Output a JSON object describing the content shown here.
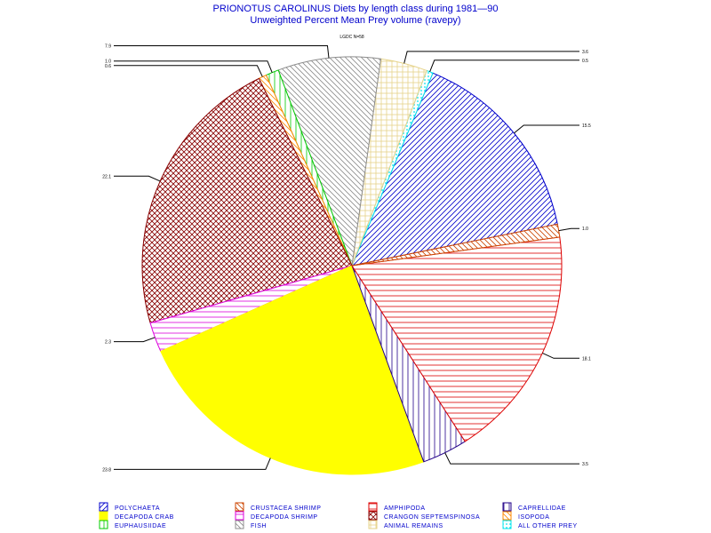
{
  "chart_data": {
    "type": "pie",
    "title": "PRIONOTUS CAROLINUS Diets by length class during 1981—90",
    "subtitle": "Unweighted Percent Mean Prey volume (ravepy)",
    "annotation": "LGDC N=58",
    "slices": [
      {
        "name": "POLYCHAETA",
        "value": 15.5,
        "label": "15.5",
        "color": "#0000cc",
        "pattern": "diag-up"
      },
      {
        "name": "ALL OTHER PREY",
        "value": 0.5,
        "label": "0.5",
        "color": "#00e5ee",
        "pattern": "dots"
      },
      {
        "name": "ANIMAL REMAINS",
        "value": 3.6,
        "label": "3.6",
        "color": "#e6d38a",
        "pattern": "grid"
      },
      {
        "name": "FISH",
        "value": 7.9,
        "label": "7.9",
        "color": "#8c8c8c",
        "pattern": "diag-down"
      },
      {
        "name": "EUPHAUSIIDAE",
        "value": 1.0,
        "label": "1.0",
        "color": "#00cc00",
        "pattern": "vert"
      },
      {
        "name": "ISOPODA",
        "value": 0.6,
        "label": "0.6",
        "color": "#ff8800",
        "pattern": "diag-down"
      },
      {
        "name": "CRANGON SEPTEMSPINOSA",
        "value": 22.1,
        "label": "22.1",
        "color": "#880000",
        "pattern": "cross"
      },
      {
        "name": "DECAPODA SHRIMP",
        "value": 2.3,
        "label": "2.3",
        "color": "#dd00dd",
        "pattern": "horiz"
      },
      {
        "name": "DECAPODA CRAB",
        "value": 23.8,
        "label": "23.8",
        "color": "#ffff00",
        "pattern": "solid"
      },
      {
        "name": "CAPRELLIDAE",
        "value": 3.5,
        "label": "3.5",
        "color": "#220088",
        "pattern": "vert"
      },
      {
        "name": "AMPHIPODA",
        "value": 18.1,
        "label": "18.1",
        "color": "#dd0000",
        "pattern": "horiz"
      },
      {
        "name": "CRUSTACEA SHRIMP",
        "value": 1.0,
        "label": "1.0",
        "color": "#cc4400",
        "pattern": "diag-down"
      }
    ],
    "legend_placement": "bottom",
    "legend": [
      {
        "name": "POLYCHAETA",
        "color": "#0000cc",
        "pattern": "diag-up"
      },
      {
        "name": "CRUSTACEA SHRIMP",
        "color": "#cc4400",
        "pattern": "diag-down"
      },
      {
        "name": "AMPHIPODA",
        "color": "#dd0000",
        "pattern": "horiz"
      },
      {
        "name": "CAPRELLIDAE",
        "color": "#220088",
        "pattern": "vert"
      },
      {
        "name": "DECAPODA CRAB",
        "color": "#ffff00",
        "pattern": "solid"
      },
      {
        "name": "DECAPODA SHRIMP",
        "color": "#dd00dd",
        "pattern": "horiz"
      },
      {
        "name": "CRANGON SEPTEMSPINOSA",
        "color": "#880000",
        "pattern": "cross"
      },
      {
        "name": "ISOPODA",
        "color": "#ff8800",
        "pattern": "diag-down"
      },
      {
        "name": "EUPHAUSIIDAE",
        "color": "#00cc00",
        "pattern": "vert"
      },
      {
        "name": "FISH",
        "color": "#8c8c8c",
        "pattern": "diag-down"
      },
      {
        "name": "ANIMAL REMAINS",
        "color": "#e6d38a",
        "pattern": "grid"
      },
      {
        "name": "ALL OTHER PREY",
        "color": "#00e5ee",
        "pattern": "dots"
      }
    ]
  }
}
